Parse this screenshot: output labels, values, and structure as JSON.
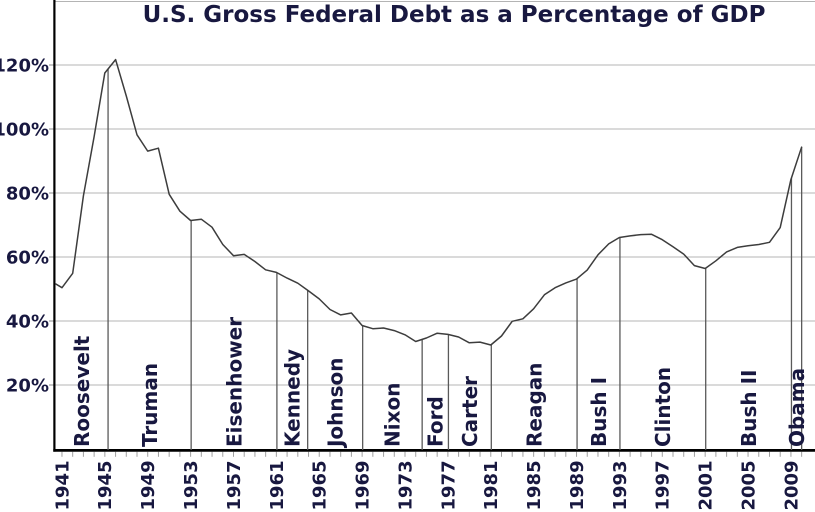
{
  "page": {
    "background": "#ffffff"
  },
  "chart_data": {
    "type": "line",
    "title": "U.S. Gross Federal Debt as a Percentage of GDP",
    "xlabel": "",
    "ylabel": "",
    "grid": true,
    "legend": "none",
    "xlim": [
      1940.35,
      2011.2
    ],
    "ylim": [
      0,
      140
    ],
    "y_tick_values": [
      20,
      40,
      60,
      80,
      100,
      120
    ],
    "y_tick_labels": [
      "20%",
      "40%",
      "60%",
      "80%",
      "100%",
      "120%"
    ],
    "x_tick_years": [
      1941,
      1945,
      1949,
      1953,
      1957,
      1961,
      1965,
      1969,
      1973,
      1977,
      1981,
      1985,
      1989,
      1993,
      1997,
      2001,
      2005,
      2009
    ],
    "minor_tick_every_year": true,
    "years": [
      1940,
      1941,
      1942,
      1943,
      1944,
      1945,
      1946,
      1947,
      1948,
      1949,
      1950,
      1951,
      1952,
      1953,
      1954,
      1955,
      1956,
      1957,
      1958,
      1959,
      1960,
      1961,
      1962,
      1963,
      1964,
      1965,
      1966,
      1967,
      1968,
      1969,
      1970,
      1971,
      1972,
      1973,
      1974,
      1975,
      1976,
      1977,
      1978,
      1979,
      1980,
      1981,
      1982,
      1983,
      1984,
      1985,
      1986,
      1987,
      1988,
      1989,
      1990,
      1991,
      1992,
      1993,
      1994,
      1995,
      1996,
      1997,
      1998,
      1999,
      2000,
      2001,
      2002,
      2003,
      2004,
      2005,
      2006,
      2007,
      2008,
      2009,
      2010
    ],
    "values": [
      52.4,
      50.4,
      54.9,
      79.1,
      97.6,
      117.5,
      121.7,
      110.3,
      98.2,
      93.1,
      94.0,
      79.6,
      74.3,
      71.4,
      71.8,
      69.3,
      63.9,
      60.4,
      60.8,
      58.6,
      56.0,
      55.2,
      53.4,
      51.8,
      49.4,
      46.9,
      43.6,
      41.9,
      42.5,
      38.6,
      37.6,
      37.8,
      37.0,
      35.7,
      33.6,
      34.7,
      36.2,
      35.8,
      35.0,
      33.2,
      33.4,
      32.5,
      35.3,
      39.9,
      40.7,
      43.8,
      48.2,
      50.4,
      51.9,
      53.1,
      55.9,
      60.7,
      64.1,
      66.1,
      66.6,
      67.0,
      67.1,
      65.4,
      63.2,
      60.9,
      57.3,
      56.4,
      58.8,
      61.6,
      63.0,
      63.5,
      63.9,
      64.6,
      69.2,
      84.2,
      94.3
    ],
    "presidents": [
      {
        "name": "Roosevelt",
        "start": 1940.35,
        "end": 1945.3
      },
      {
        "name": "Truman",
        "start": 1945.3,
        "end": 1953.05
      },
      {
        "name": "Eisenhower",
        "start": 1953.05,
        "end": 1961.05
      },
      {
        "name": "Kennedy",
        "start": 1961.05,
        "end": 1963.92
      },
      {
        "name": "Johnson",
        "start": 1963.92,
        "end": 1969.05
      },
      {
        "name": "Nixon",
        "start": 1969.05,
        "end": 1974.6
      },
      {
        "name": "Ford",
        "start": 1974.6,
        "end": 1977.05
      },
      {
        "name": "Carter",
        "start": 1977.05,
        "end": 1981.05
      },
      {
        "name": "Reagan",
        "start": 1981.05,
        "end": 1989.05
      },
      {
        "name": "Bush I",
        "start": 1989.05,
        "end": 1993.05
      },
      {
        "name": "Clinton",
        "start": 1993.05,
        "end": 2001.05
      },
      {
        "name": "Bush II",
        "start": 2001.05,
        "end": 2009.05
      },
      {
        "name": "Obama",
        "start": 2009.05,
        "end": 2010.0
      }
    ],
    "colors": {
      "text": "#181840",
      "line": "#3d3d3d",
      "divider": "#5a5a5a",
      "grid": "#b4b4b4",
      "tick": "#a0a0a0",
      "axis": "#000000",
      "background": "#ffffff"
    }
  }
}
